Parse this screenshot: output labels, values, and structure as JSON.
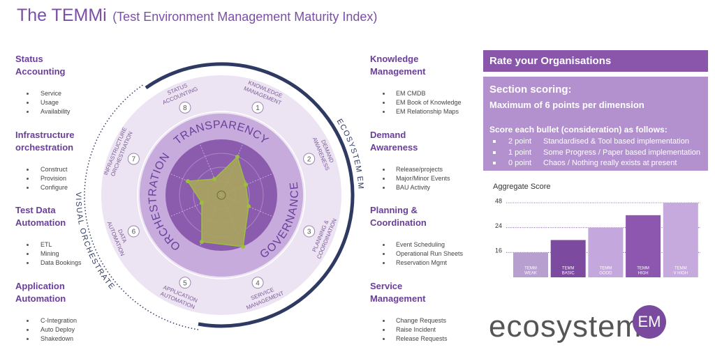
{
  "header": {
    "title": "The TEMMi",
    "subtitle": "(Test Environment Management Maturity Index)"
  },
  "dimensions": [
    {
      "title": "Status Accounting",
      "bullets": [
        "Service",
        "Usage",
        "Availability"
      ]
    },
    {
      "title": "Infrastructure orchestration",
      "bullets": [
        "Construct",
        "Provision",
        "Configure"
      ]
    },
    {
      "title": "Test Data Automation",
      "bullets": [
        "ETL",
        "Mining",
        "Data Bookings"
      ]
    },
    {
      "title": "Application Automation",
      "bullets": [
        "C-Integration",
        "Auto Deploy",
        "Shakedown"
      ]
    },
    {
      "title": "Knowledge Management",
      "bullets": [
        "EM CMDB",
        "EM Book of Knowledge",
        "EM Relationship Maps"
      ]
    },
    {
      "title": "Demand Awareness",
      "bullets": [
        "Release/projects",
        "Major/Minor Events",
        "BAU Activity"
      ]
    },
    {
      "title": "Planning & Coordination",
      "bullets": [
        "Event Scheduling",
        "Operational Run Sheets",
        "Reservation Mgmt"
      ]
    },
    {
      "title": "Service Management",
      "bullets": [
        "Change Requests",
        "Raise Incident",
        "Release  Requests"
      ]
    }
  ],
  "wheel": {
    "segments": [
      {
        "number": "1",
        "label": [
          "KNOWLEDGE",
          "MANAGEMENT"
        ]
      },
      {
        "number": "2",
        "label": [
          "DEMAND",
          "AWARENESS"
        ]
      },
      {
        "number": "3",
        "label": [
          "PLANNING &",
          "COORDINATION"
        ]
      },
      {
        "number": "4",
        "label": [
          "SERVICE",
          "MANAGEMENT"
        ]
      },
      {
        "number": "5",
        "label": [
          "APPLICATION",
          "AUTOMATION"
        ]
      },
      {
        "number": "6",
        "label": [
          "DATA",
          "AUTOMATION"
        ]
      },
      {
        "number": "7",
        "label": [
          "INFRASTRUCTURE",
          "ORCHESTRATION"
        ]
      },
      {
        "number": "8",
        "label": [
          "STATUS",
          "ACCOUNTING"
        ]
      }
    ],
    "groups": [
      "TRANSPARENCY",
      "GOVERNANCE",
      "ORCHESTRATION"
    ],
    "outer_labels": [
      "ECOSYSTEM EM",
      "VISUAL ORCHESTRATE"
    ]
  },
  "rating": {
    "title": "Rate your Organisations",
    "section": "Section scoring:",
    "maximum": "Maximum of 6 points per dimension",
    "instruction": "Score each bullet (consideration) as follows:",
    "levels": [
      {
        "points": "2 point",
        "description": "Standardised & Tool based implementation"
      },
      {
        "points": "1 point",
        "description": "Some Progress / Paper based implementation"
      },
      {
        "points": "0 point",
        "description": "Chaos / Nothing really exists at present"
      }
    ]
  },
  "chart_data": {
    "type": "bar",
    "title": "Aggregate Score",
    "categories": [
      [
        "TEMM",
        "WEAK"
      ],
      [
        "TEMM",
        "BASIC"
      ],
      [
        "TEMM",
        "GOOD"
      ],
      [
        "TEMM",
        "HIGH"
      ],
      [
        "TEMM",
        "V HIGH"
      ]
    ],
    "values": [
      16,
      20,
      24,
      36,
      48
    ],
    "colors": [
      "#b7a0cf",
      "#7c4a9e",
      "#c4a7dc",
      "#8d57b0",
      "#c6a9dd"
    ],
    "ylim": [
      8,
      48
    ],
    "yticks": [
      16,
      24,
      48
    ],
    "grid": true
  },
  "logo": {
    "text": "ecosystem",
    "badge": "EM"
  }
}
